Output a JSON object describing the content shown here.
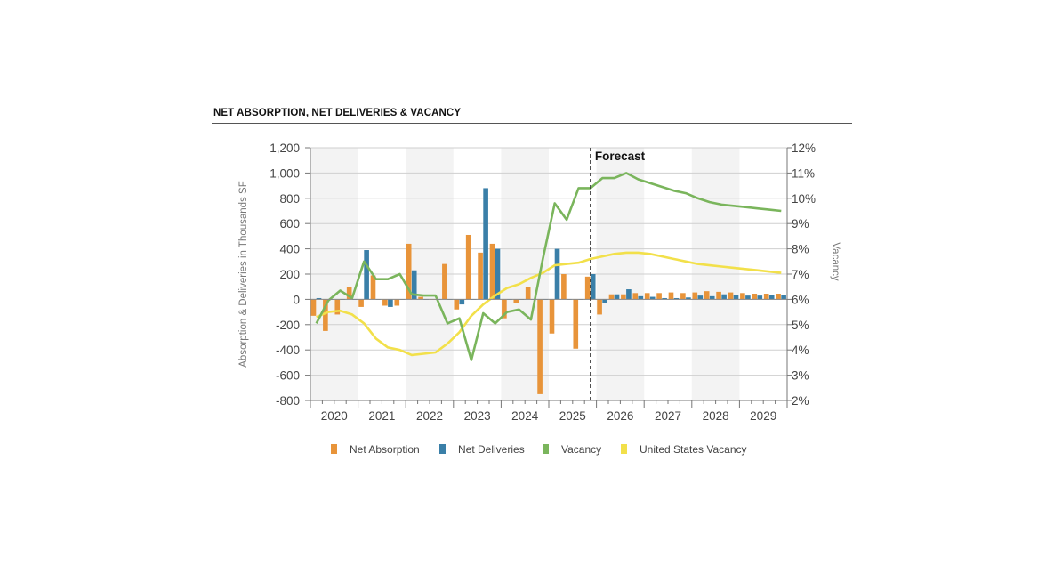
{
  "chart_data": {
    "type": "bar",
    "title": "NET ABSORPTION, NET DELIVERIES & VACANCY",
    "ylabel": "Absorption & Deliveries in Thousands SF",
    "y2label": "Vacancy",
    "forecast_label": "Forecast",
    "ylim": [
      -800,
      1200
    ],
    "y_ticks": [
      "-800",
      "-600",
      "-400",
      "-200",
      "0",
      "200",
      "400",
      "600",
      "800",
      "1,000",
      "1,200"
    ],
    "y2lim": [
      2,
      12
    ],
    "y2_ticks": [
      "2%",
      "3%",
      "4%",
      "5%",
      "6%",
      "7%",
      "8%",
      "9%",
      "10%",
      "11%",
      "12%"
    ],
    "years": [
      "2020",
      "2021",
      "2022",
      "2023",
      "2024",
      "2025",
      "2026",
      "2027",
      "2028",
      "2029"
    ],
    "quarters": [
      "2020 Q1",
      "2020 Q2",
      "2020 Q3",
      "2020 Q4",
      "2021 Q1",
      "2021 Q2",
      "2021 Q3",
      "2021 Q4",
      "2022 Q1",
      "2022 Q2",
      "2022 Q3",
      "2022 Q4",
      "2023 Q1",
      "2023 Q2",
      "2023 Q3",
      "2023 Q4",
      "2024 Q1",
      "2024 Q2",
      "2024 Q3",
      "2024 Q4",
      "2025 Q1",
      "2025 Q2",
      "2025 Q3",
      "2025 Q4",
      "2026 Q1",
      "2026 Q2",
      "2026 Q3",
      "2026 Q4",
      "2027 Q1",
      "2027 Q2",
      "2027 Q3",
      "2027 Q4",
      "2028 Q1",
      "2028 Q2",
      "2028 Q3",
      "2028 Q4",
      "2029 Q1",
      "2029 Q2",
      "2029 Q3",
      "2029 Q4"
    ],
    "forecast_start": "2025 Q4",
    "grid": "horizontal",
    "legend_position": "bottom",
    "series": [
      {
        "name": "Net Absorption",
        "type": "bar",
        "axis": "left",
        "color": "#E8943A",
        "values": [
          -130,
          -250,
          -120,
          100,
          -60,
          190,
          -50,
          -50,
          440,
          20,
          0,
          280,
          -80,
          510,
          370,
          440,
          -150,
          -30,
          100,
          -750,
          -270,
          200,
          -390,
          180,
          -120,
          40,
          40,
          50,
          50,
          50,
          55,
          50,
          55,
          65,
          60,
          55,
          50,
          45,
          45,
          45
        ]
      },
      {
        "name": "Net Deliveries",
        "type": "bar",
        "axis": "right-edge",
        "color": "#3A7FA8",
        "values": [
          10,
          0,
          0,
          0,
          390,
          0,
          -60,
          0,
          230,
          0,
          0,
          0,
          -40,
          0,
          880,
          400,
          0,
          0,
          0,
          0,
          400,
          0,
          0,
          200,
          -30,
          40,
          80,
          25,
          20,
          10,
          10,
          15,
          30,
          25,
          40,
          35,
          30,
          30,
          35,
          35
        ]
      },
      {
        "name": "Vacancy",
        "type": "line",
        "axis": "right",
        "color": "#7AB55C",
        "values": [
          5.05,
          5.95,
          6.35,
          6.05,
          7.5,
          6.8,
          6.8,
          7.0,
          6.2,
          6.15,
          6.15,
          5.05,
          5.25,
          3.6,
          5.45,
          5.05,
          5.5,
          5.6,
          5.2,
          7.6,
          9.8,
          9.15,
          10.4,
          10.4,
          10.8,
          10.8,
          11.0,
          10.75,
          10.6,
          10.45,
          10.3,
          10.2,
          10.0,
          9.85,
          9.75,
          9.7,
          9.65,
          9.6,
          9.55,
          9.5
        ]
      },
      {
        "name": "United States Vacancy",
        "type": "line",
        "axis": "right",
        "color": "#F2E04A",
        "values": [
          5.3,
          5.5,
          5.55,
          5.4,
          5.05,
          4.45,
          4.1,
          4.0,
          3.8,
          3.85,
          3.9,
          4.25,
          4.7,
          5.35,
          5.8,
          6.15,
          6.45,
          6.6,
          6.85,
          7.05,
          7.35,
          7.4,
          7.45,
          7.6,
          7.7,
          7.8,
          7.85,
          7.85,
          7.8,
          7.7,
          7.6,
          7.5,
          7.4,
          7.35,
          7.3,
          7.25,
          7.2,
          7.15,
          7.1,
          7.05
        ]
      }
    ]
  }
}
